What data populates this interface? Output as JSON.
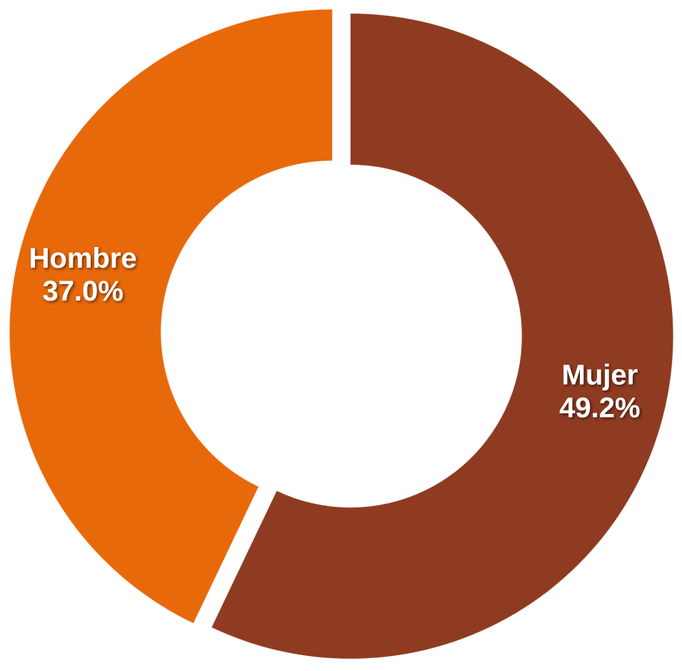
{
  "chart_data": {
    "type": "donut",
    "categories": [
      "Mujer",
      "Hombre"
    ],
    "values": [
      49.2,
      37.0
    ],
    "value_labels": [
      "49.2%",
      "37.0%"
    ],
    "colors": [
      "#8f3b22",
      "#e8690a"
    ]
  }
}
